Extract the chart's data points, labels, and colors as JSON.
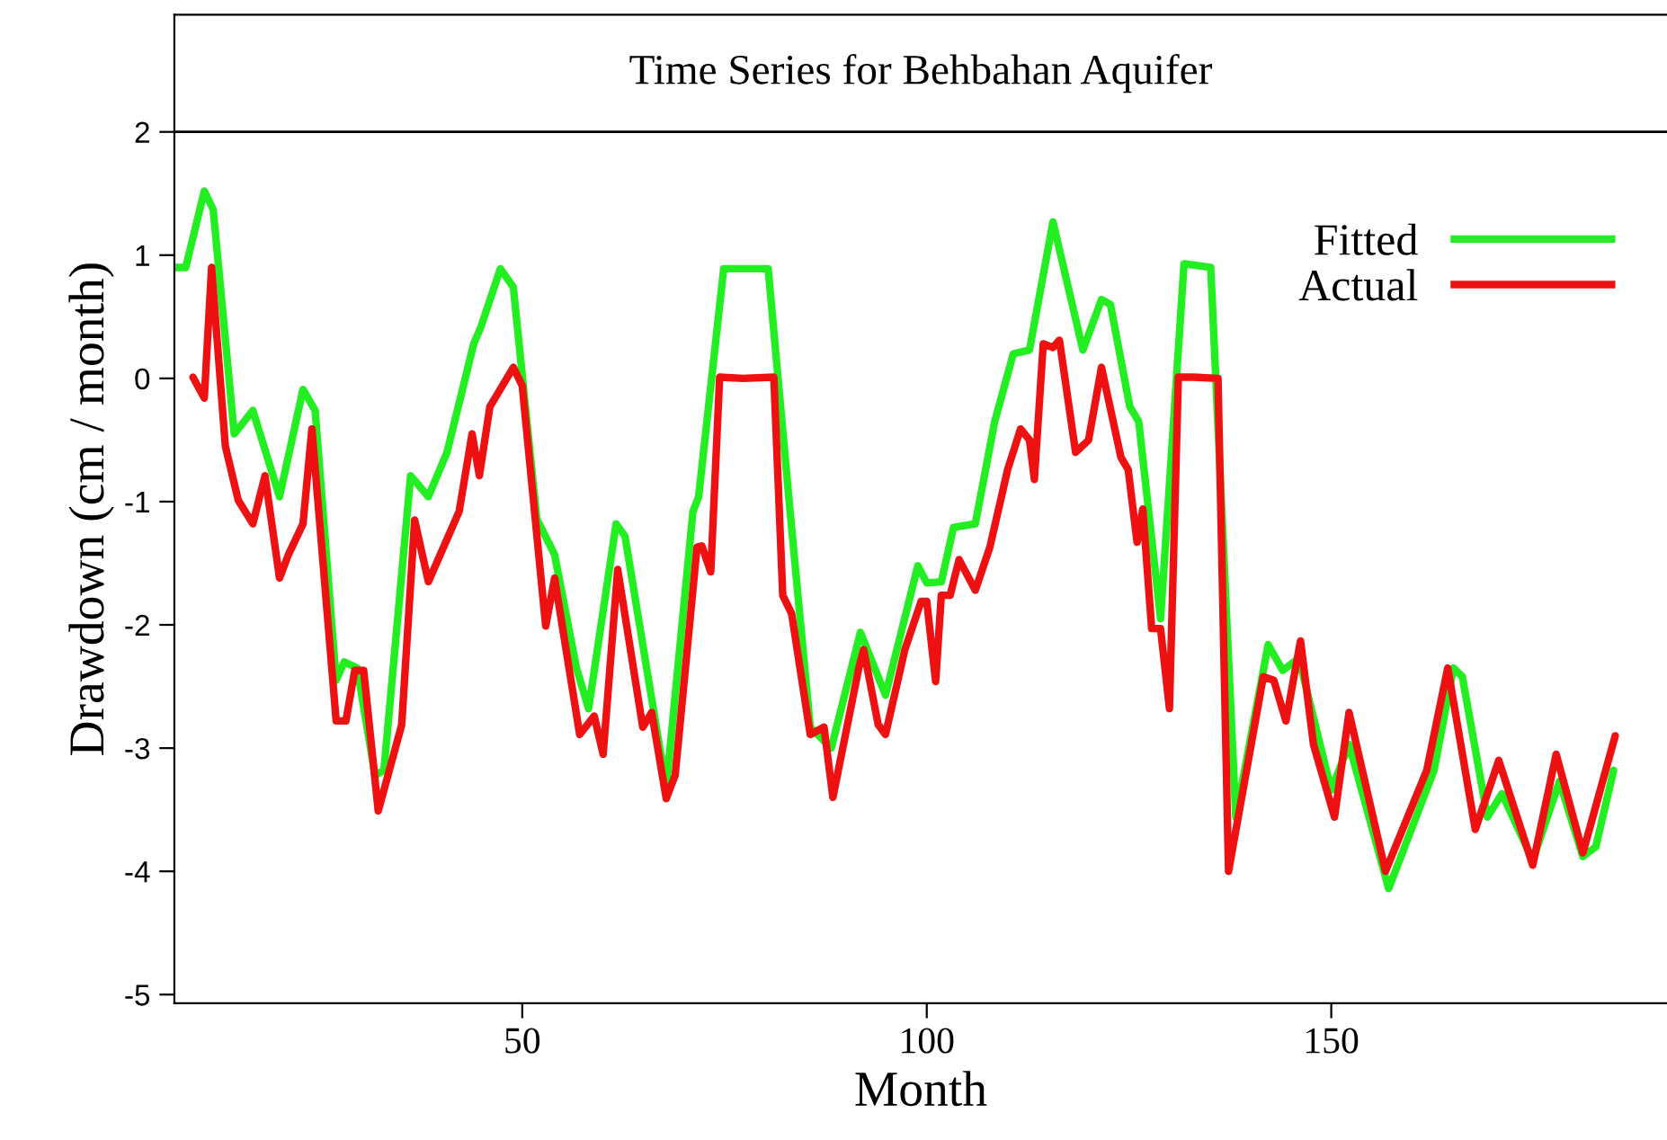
{
  "chart_data": {
    "type": "line",
    "title": "Time Series for Behbahan Aquifer",
    "xlabel": "Month",
    "ylabel": "Drawdown (cm / month)",
    "xlim": [
      7,
      191.5
    ],
    "ylim": [
      -5.07,
      2.95
    ],
    "ref_lines": [
      {
        "axis": "y",
        "value": 2,
        "color": "#000000",
        "line_style": "solid"
      }
    ],
    "xticks": [
      50,
      100,
      150
    ],
    "yticks": [
      -5,
      -4,
      -3,
      -2,
      -1,
      0,
      1,
      2
    ],
    "grid": false,
    "legend": "top right",
    "marker": "none",
    "line_style": "solid",
    "series": [
      {
        "name": "Fitted",
        "color": "#22ee22",
        "x": [
          7,
          8.4,
          10.7,
          11.8,
          14.4,
          16.7,
          20,
          22.9,
          24.4,
          27,
          28,
          29.6,
          31.8,
          32.9,
          36.2,
          38.4,
          40.7,
          42.2,
          44,
          44.9,
          47.3,
          48.9,
          51.8,
          54,
          56.7,
          58.2,
          61.6,
          62.7,
          67.8,
          71.1,
          71.8,
          74.9,
          80.4,
          82.9,
          85.6,
          88.2,
          91.8,
          94.9,
          98.9,
          100,
          101.8,
          103.3,
          106,
          108.4,
          110.7,
          112.7,
          115.6,
          119.3,
          121.6,
          122.7,
          125.1,
          126.2,
          128.9,
          131.8,
          135.1,
          138.2,
          142.2,
          144,
          146,
          150,
          152.2,
          157.1,
          162.7,
          165.1,
          166.2,
          169.3,
          171.1,
          174.9,
          178.2,
          181.1,
          182.7,
          184.9
        ],
        "values": [
          0.9,
          0.9,
          1.52,
          1.37,
          -0.45,
          -0.26,
          -0.96,
          -0.09,
          -0.26,
          -2.45,
          -2.3,
          -2.35,
          -3.22,
          -3.18,
          -0.79,
          -0.96,
          -0.6,
          -0.2,
          0.28,
          0.42,
          0.89,
          0.74,
          -1.14,
          -1.43,
          -2.35,
          -2.68,
          -1.18,
          -1.28,
          -3.32,
          -1.08,
          -0.96,
          0.89,
          0.89,
          -0.93,
          -2.83,
          -3.0,
          -2.06,
          -2.57,
          -1.52,
          -1.66,
          -1.65,
          -1.21,
          -1.18,
          -0.35,
          0.2,
          0.23,
          1.27,
          0.23,
          0.64,
          0.6,
          -0.23,
          -0.35,
          -1.95,
          0.93,
          0.9,
          -3.56,
          -2.16,
          -2.37,
          -2.27,
          -3.34,
          -2.97,
          -4.14,
          -3.18,
          -2.35,
          -2.42,
          -3.56,
          -3.37,
          -3.91,
          -3.27,
          -3.88,
          -3.8,
          -3.18
        ]
      },
      {
        "name": "Actual",
        "color": "#ee1111",
        "x": [
          9.3,
          10.7,
          11.6,
          13.3,
          14.9,
          16.7,
          18.2,
          20,
          21.1,
          22.9,
          24,
          27,
          28.2,
          29.3,
          30.4,
          32.2,
          35.1,
          36.7,
          38.4,
          42.2,
          43.8,
          44.7,
          46,
          48.9,
          50,
          52.9,
          54,
          57.1,
          58.9,
          60,
          61.8,
          64.9,
          66,
          67.8,
          68.9,
          71.6,
          72.2,
          73.3,
          74.4,
          77.3,
          81.1,
          82.2,
          83.3,
          85.6,
          87.3,
          88.4,
          91.6,
          92.2,
          94,
          94.9,
          97.3,
          99.3,
          100,
          101.1,
          101.8,
          102.9,
          104,
          106,
          107.8,
          110,
          111.6,
          112.7,
          113.3,
          114.4,
          115.6,
          116.4,
          118.4,
          120,
          121.6,
          124,
          124.9,
          126,
          126.7,
          127.8,
          128.9,
          130,
          131.1,
          132.9,
          136,
          137.3,
          141.6,
          142.9,
          144.4,
          146.2,
          147.8,
          150.4,
          152.2,
          156.7,
          161.8,
          164.4,
          167.8,
          170.7,
          174.9,
          177.8,
          181.1,
          185.1
        ],
        "values": [
          0.01,
          -0.16,
          0.9,
          -0.55,
          -0.99,
          -1.18,
          -0.79,
          -1.62,
          -1.43,
          -1.18,
          -0.41,
          -2.78,
          -2.78,
          -2.37,
          -2.37,
          -3.51,
          -2.81,
          -1.15,
          -1.65,
          -1.08,
          -0.45,
          -0.79,
          -0.23,
          0.09,
          -0.06,
          -2.01,
          -1.62,
          -2.89,
          -2.74,
          -3.05,
          -1.55,
          -2.83,
          -2.71,
          -3.41,
          -3.22,
          -1.37,
          -1.36,
          -1.57,
          0.01,
          0,
          0.01,
          -1.76,
          -1.91,
          -2.89,
          -2.83,
          -3.4,
          -2.35,
          -2.2,
          -2.81,
          -2.89,
          -2.2,
          -1.81,
          -1.81,
          -2.46,
          -1.76,
          -1.76,
          -1.47,
          -1.72,
          -1.37,
          -0.74,
          -0.41,
          -0.5,
          -0.82,
          0.28,
          0.25,
          0.31,
          -0.6,
          -0.5,
          0.09,
          -0.64,
          -0.74,
          -1.33,
          -1.06,
          -2.03,
          -2.03,
          -2.68,
          0.01,
          0.01,
          0,
          -4.0,
          -2.42,
          -2.45,
          -2.78,
          -2.13,
          -2.97,
          -3.56,
          -2.71,
          -4.0,
          -3.18,
          -2.35,
          -3.66,
          -3.1,
          -3.95,
          -3.05,
          -3.85,
          -2.9
        ]
      }
    ]
  }
}
